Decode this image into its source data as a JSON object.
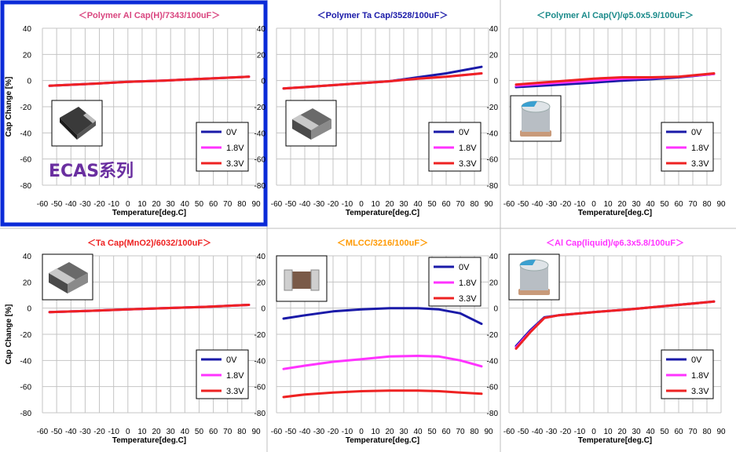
{
  "highlight_label": "ECAS系列",
  "chart_data": [
    {
      "type": "line",
      "title": "＜Polymer Al Cap(H)/7343/100uF＞",
      "title_color": "#d9457f",
      "highlighted": true,
      "xlabel": "Temperature[deg.C]",
      "ylabel": "Cap Change [%]",
      "xlim": [
        -60,
        90
      ],
      "ylim": [
        -80,
        40
      ],
      "x_ticks": [
        -60,
        -50,
        -40,
        -30,
        -20,
        -10,
        0,
        10,
        20,
        30,
        40,
        50,
        60,
        70,
        80,
        90
      ],
      "y_ticks": [
        40,
        20,
        0,
        -20,
        -40,
        -60,
        -80
      ],
      "grid": true,
      "legend_position": "bottom-right",
      "component_icon": "tantalum-chip-icon",
      "series": [
        {
          "name": "0V",
          "color": "#1a1aa8",
          "x": [
            -55,
            -25,
            0,
            25,
            55,
            85
          ],
          "values": [
            -4,
            -2.5,
            -1,
            0,
            1.5,
            3
          ]
        },
        {
          "name": "1.8V",
          "color": "#ff33ff",
          "x": [
            -55,
            -25,
            0,
            25,
            55,
            85
          ],
          "values": [
            -4,
            -2.5,
            -1,
            0,
            1.5,
            3
          ]
        },
        {
          "name": "3.3V",
          "color": "#ee2222",
          "x": [
            -55,
            -25,
            0,
            25,
            55,
            85
          ],
          "values": [
            -4,
            -2.5,
            -1,
            0,
            1.5,
            3
          ]
        }
      ]
    },
    {
      "type": "line",
      "title": "＜Polymer Ta Cap/3528/100uF＞",
      "title_color": "#1a1aa8",
      "xlabel": "Temperature[deg.C]",
      "xlim": [
        -60,
        90
      ],
      "ylim": [
        -80,
        40
      ],
      "x_ticks": [
        -60,
        -50,
        -40,
        -30,
        -20,
        -10,
        0,
        10,
        20,
        30,
        40,
        50,
        60,
        70,
        80,
        90
      ],
      "y_ticks": [
        40,
        20,
        0,
        -20,
        -40,
        -60,
        -80
      ],
      "grid": true,
      "legend_position": "bottom-right",
      "component_icon": "chip-cap-icon",
      "series": [
        {
          "name": "0V",
          "color": "#1a1aa8",
          "x": [
            -55,
            -40,
            -20,
            0,
            20,
            40,
            60,
            85
          ],
          "values": [
            -6,
            -5,
            -3.5,
            -2,
            -0.5,
            2.5,
            5.5,
            10.5
          ]
        },
        {
          "name": "1.8V",
          "color": "#ff33ff",
          "x": [
            -55,
            -40,
            -20,
            0,
            20,
            40,
            60,
            85
          ],
          "values": [
            -6,
            -5,
            -3.5,
            -2,
            -0.5,
            1.5,
            3,
            5.5
          ]
        },
        {
          "name": "3.3V",
          "color": "#ee2222",
          "x": [
            -55,
            -40,
            -20,
            0,
            20,
            40,
            60,
            85
          ],
          "values": [
            -6,
            -5,
            -3.5,
            -2,
            -0.5,
            1.5,
            3,
            5.5
          ]
        }
      ]
    },
    {
      "type": "line",
      "title": "＜Polymer Al Cap(V)/φ5.0x5.9/100uF＞",
      "title_color": "#1a8a8a",
      "xlabel": "Temperature[deg.C]",
      "xlim": [
        -60,
        90
      ],
      "ylim": [
        -80,
        40
      ],
      "x_ticks": [
        -60,
        -50,
        -40,
        -30,
        -20,
        -10,
        0,
        10,
        20,
        30,
        40,
        50,
        60,
        70,
        80,
        90
      ],
      "y_ticks": [
        40,
        20,
        0,
        -20,
        -40,
        -60,
        -80
      ],
      "grid": true,
      "legend_position": "bottom-right",
      "component_icon": "can-cap-icon",
      "series": [
        {
          "name": "0V",
          "color": "#1a1aa8",
          "x": [
            -55,
            -30,
            0,
            20,
            40,
            60,
            85
          ],
          "values": [
            -5,
            -3.5,
            -1.5,
            0,
            1,
            2.5,
            5
          ]
        },
        {
          "name": "1.8V",
          "color": "#ff33ff",
          "x": [
            -55,
            -30,
            0,
            20,
            40,
            60,
            85
          ],
          "values": [
            -4,
            -2,
            0,
            1.5,
            2,
            3,
            5
          ]
        },
        {
          "name": "3.3V",
          "color": "#ee2222",
          "x": [
            -55,
            -30,
            0,
            20,
            40,
            60,
            85
          ],
          "values": [
            -3,
            -1,
            1.5,
            2.5,
            2.5,
            3,
            5.5
          ]
        }
      ]
    },
    {
      "type": "line",
      "title": "＜Ta Cap(MnO2)/6032/100uF＞",
      "title_color": "#ee2222",
      "xlabel": "Temperature[deg.C]",
      "ylabel": "Cap Change [%]",
      "xlim": [
        -60,
        90
      ],
      "ylim": [
        -80,
        40
      ],
      "x_ticks": [
        -60,
        -50,
        -40,
        -30,
        -20,
        -10,
        0,
        10,
        20,
        30,
        40,
        50,
        60,
        70,
        80,
        90
      ],
      "y_ticks": [
        40,
        20,
        0,
        -20,
        -40,
        -60,
        -80
      ],
      "grid": true,
      "legend_position": "bottom-right",
      "component_icon": "chip-cap-icon",
      "series": [
        {
          "name": "0V",
          "color": "#1a1aa8",
          "x": [
            -55,
            -25,
            0,
            25,
            55,
            85
          ],
          "values": [
            -3,
            -2,
            -1,
            0,
            1,
            2.5
          ]
        },
        {
          "name": "1.8V",
          "color": "#ff33ff",
          "x": [
            -55,
            -25,
            0,
            25,
            55,
            85
          ],
          "values": [
            -3,
            -2,
            -1,
            0,
            1,
            2.5
          ]
        },
        {
          "name": "3.3V",
          "color": "#ee2222",
          "x": [
            -55,
            -25,
            0,
            25,
            55,
            85
          ],
          "values": [
            -3,
            -2,
            -1,
            0,
            1,
            2.5
          ]
        }
      ]
    },
    {
      "type": "line",
      "title": "＜MLCC/3216/100uF＞",
      "title_color": "#ff9900",
      "xlabel": "Temperature[deg.C]",
      "xlim": [
        -60,
        90
      ],
      "ylim": [
        -80,
        40
      ],
      "x_ticks": [
        -60,
        -50,
        -40,
        -30,
        -20,
        -10,
        0,
        10,
        20,
        30,
        40,
        50,
        60,
        70,
        80,
        90
      ],
      "y_ticks": [
        40,
        20,
        0,
        -20,
        -40,
        -60,
        -80
      ],
      "grid": true,
      "legend_position": "top-right",
      "component_icon": "mlcc-chip-icon",
      "series": [
        {
          "name": "0V",
          "color": "#1a1aa8",
          "x": [
            -55,
            -40,
            -20,
            0,
            20,
            40,
            55,
            70,
            85
          ],
          "values": [
            -8,
            -5.5,
            -2.5,
            -1,
            0,
            0,
            -1,
            -4,
            -12
          ]
        },
        {
          "name": "1.8V",
          "color": "#ff33ff",
          "x": [
            -55,
            -40,
            -20,
            0,
            20,
            40,
            55,
            70,
            85
          ],
          "values": [
            -46.5,
            -44,
            -41,
            -39,
            -37,
            -36.5,
            -37,
            -40,
            -44.5
          ]
        },
        {
          "name": "3.3V",
          "color": "#ee2222",
          "x": [
            -55,
            -40,
            -20,
            0,
            20,
            40,
            55,
            70,
            85
          ],
          "values": [
            -68,
            -66,
            -64.5,
            -63.5,
            -63,
            -63,
            -63.5,
            -64.5,
            -65.5
          ]
        }
      ]
    },
    {
      "type": "line",
      "title": "＜Al Cap(liquid)/φ6.3x5.8/100uF＞",
      "title_color": "#ff33ff",
      "xlabel": "Temperature[deg.C]",
      "xlim": [
        -60,
        90
      ],
      "ylim": [
        -80,
        40
      ],
      "x_ticks": [
        -60,
        -50,
        -40,
        -30,
        -20,
        -10,
        0,
        10,
        20,
        30,
        40,
        50,
        60,
        70,
        80,
        90
      ],
      "y_ticks": [
        40,
        20,
        0,
        -20,
        -40,
        -60,
        -80
      ],
      "grid": true,
      "legend_position": "bottom-right",
      "component_icon": "can-cap-icon",
      "series": [
        {
          "name": "0V",
          "color": "#1a1aa8",
          "x": [
            -55,
            -45,
            -35,
            -25,
            0,
            25,
            55,
            85
          ],
          "values": [
            -29,
            -17,
            -7,
            -5.5,
            -3,
            -1,
            2,
            5
          ]
        },
        {
          "name": "1.8V",
          "color": "#ff33ff",
          "x": [
            -55,
            -45,
            -35,
            -25,
            0,
            25,
            55,
            85
          ],
          "values": [
            -30,
            -18,
            -7.5,
            -5.5,
            -3,
            -1,
            2,
            5
          ]
        },
        {
          "name": "3.3V",
          "color": "#ee2222",
          "x": [
            -55,
            -45,
            -35,
            -25,
            0,
            25,
            55,
            85
          ],
          "values": [
            -31,
            -18.5,
            -7.5,
            -5.5,
            -3,
            -1,
            2,
            5
          ]
        }
      ]
    }
  ]
}
